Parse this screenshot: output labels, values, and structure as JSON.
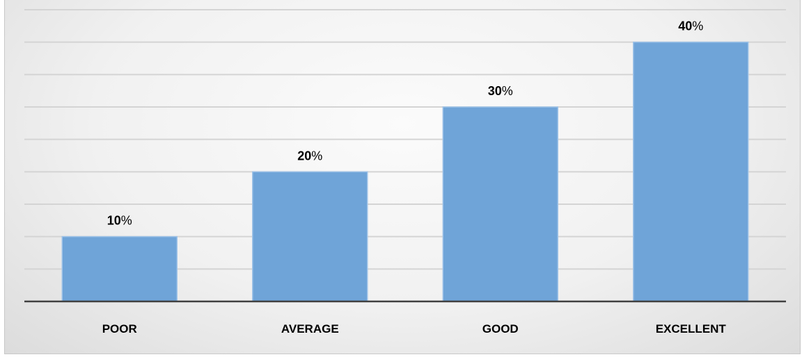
{
  "chart_data": {
    "type": "bar",
    "categories": [
      "POOR",
      "AVERAGE",
      "GOOD",
      "EXCELLENT"
    ],
    "values": [
      10,
      20,
      30,
      40
    ],
    "value_suffix": "%",
    "ylim": [
      0,
      45
    ],
    "grid": true,
    "legend": "none",
    "colors": {
      "bar": "#6fa4d8",
      "bar_edge": "#9fc3e8",
      "gridline": "#d4d4d4",
      "axis": "#404040",
      "background": "#f1f1f1"
    }
  }
}
